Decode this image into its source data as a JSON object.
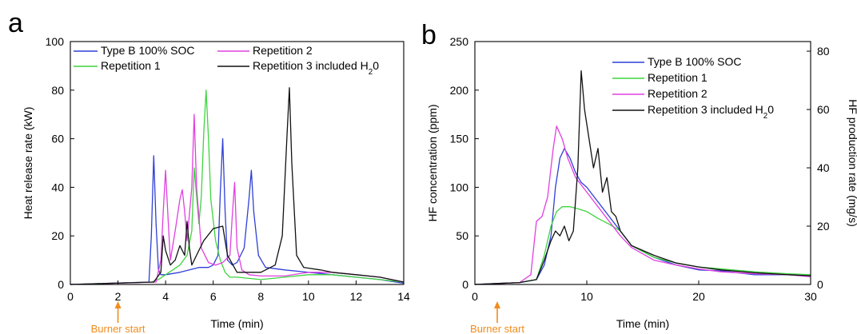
{
  "colors": {
    "type_b": "#2f3fd6",
    "repetition_1": "#3fd43f",
    "repetition_2": "#e040e0",
    "repetition_3": "#111111",
    "burner": "#f08c1e",
    "axis": "#000000"
  },
  "chart_data": [
    {
      "panel_label": "a",
      "type": "line",
      "xlabel": "Time (min)",
      "ylabel": "Heat release rate (kW)",
      "xlim": [
        0,
        14
      ],
      "ylim": [
        0,
        100
      ],
      "xticks": [
        0,
        2,
        4,
        6,
        8,
        10,
        12,
        14
      ],
      "yticks": [
        0,
        20,
        40,
        60,
        80,
        100
      ],
      "legend_position": "top",
      "annotation": {
        "text": "Burner start",
        "x": 2
      },
      "series": [
        {
          "name": "Type B 100% SOC",
          "color_key": "type_b",
          "x": [
            0,
            3.3,
            3.4,
            3.5,
            3.6,
            3.7,
            3.8,
            4.0,
            4.3,
            4.6,
            5.0,
            5.4,
            5.8,
            6.0,
            6.2,
            6.3,
            6.4,
            6.5,
            6.6,
            6.8,
            7.0,
            7.3,
            7.5,
            7.6,
            7.7,
            7.9,
            8.2,
            9.0,
            10.0,
            11.0,
            12.0,
            13.0,
            14.0
          ],
          "y": [
            0,
            1,
            20,
            53,
            25,
            6,
            4,
            4,
            4.5,
            5,
            6,
            7,
            7,
            8,
            12,
            38,
            60,
            30,
            10,
            8,
            9,
            15,
            35,
            47,
            30,
            12,
            7,
            6,
            5,
            4,
            3,
            2,
            0.5
          ]
        },
        {
          "name": "Repetition 1",
          "color_key": "repetition_1",
          "x": [
            0,
            3.4,
            3.7,
            4.0,
            4.3,
            4.6,
            4.9,
            5.1,
            5.2,
            5.4,
            5.5,
            5.6,
            5.7,
            5.8,
            5.9,
            6.1,
            6.3,
            6.5,
            6.7,
            7.0,
            7.5,
            8.0,
            9.0,
            10.0,
            11.0,
            12.0,
            13.0,
            14.0
          ],
          "y": [
            0,
            1,
            2,
            4,
            6,
            8,
            12,
            22,
            48,
            25,
            36,
            62,
            80,
            60,
            35,
            18,
            10,
            5,
            3,
            3,
            2.5,
            2,
            3,
            4,
            4,
            3,
            2,
            1
          ]
        },
        {
          "name": "Repetition 2",
          "color_key": "repetition_2",
          "x": [
            0,
            3.6,
            3.8,
            3.9,
            4.0,
            4.1,
            4.2,
            4.4,
            4.6,
            4.7,
            4.8,
            4.9,
            5.1,
            5.2,
            5.3,
            5.5,
            5.8,
            6.1,
            6.4,
            6.7,
            6.8,
            6.9,
            7.0,
            7.2,
            7.5,
            8.0,
            9.0,
            10.0,
            11.0,
            12.0,
            13.0,
            14.0
          ],
          "y": [
            0,
            1,
            10,
            30,
            47,
            28,
            10,
            22,
            35,
            39,
            30,
            18,
            40,
            70,
            40,
            15,
            9,
            8,
            9,
            12,
            28,
            42,
            15,
            6,
            4,
            3.5,
            3.5,
            5,
            5,
            4,
            3,
            1
          ]
        },
        {
          "name": "Repetition 3 included H₂0",
          "color_key": "repetition_3",
          "x": [
            0,
            3.5,
            3.8,
            3.9,
            4.0,
            4.2,
            4.4,
            4.6,
            4.8,
            4.9,
            5.0,
            5.1,
            5.2,
            5.4,
            5.6,
            6.0,
            6.4,
            6.6,
            7.0,
            8.0,
            8.6,
            8.9,
            9.1,
            9.2,
            9.3,
            9.5,
            9.8,
            10.5,
            11.0,
            12.0,
            13.0,
            14.0
          ],
          "y": [
            0,
            1,
            5,
            20,
            14,
            8,
            10,
            16,
            12,
            26,
            15,
            8,
            10,
            14,
            18,
            23,
            24,
            12,
            5,
            5,
            8,
            20,
            62,
            81,
            50,
            12,
            7,
            6,
            5,
            4,
            3,
            1
          ]
        }
      ]
    },
    {
      "panel_label": "b",
      "type": "line",
      "xlabel": "Time (min)",
      "ylabel": "HF concentration (ppm)",
      "y2label": "HF production rate (mg/s)",
      "xlim": [
        0,
        30
      ],
      "ylim": [
        0,
        250
      ],
      "y2lim": [
        0,
        83.3
      ],
      "xticks": [
        0,
        10,
        20,
        30
      ],
      "yticks": [
        0,
        50,
        100,
        150,
        200,
        250
      ],
      "y2ticks": [
        0,
        20,
        40,
        60,
        80
      ],
      "legend_position": "top-right",
      "annotation": {
        "text": "Burner start",
        "x": 2
      },
      "series": [
        {
          "name": "Type B 100% SOC",
          "color_key": "type_b",
          "x": [
            0,
            2,
            4,
            5.5,
            6.2,
            6.8,
            7.2,
            7.6,
            8.0,
            8.5,
            9.0,
            9.5,
            10.0,
            11.0,
            12.0,
            13.0,
            14.0,
            16.0,
            18.0,
            20.0,
            22.0,
            25.0,
            28.0,
            30.0
          ],
          "y": [
            0,
            1,
            2,
            5,
            20,
            50,
            100,
            130,
            140,
            130,
            115,
            105,
            100,
            85,
            70,
            55,
            40,
            28,
            20,
            15,
            14,
            10,
            10,
            9
          ]
        },
        {
          "name": "Repetition 1",
          "color_key": "repetition_1",
          "x": [
            0,
            2,
            4,
            5.5,
            6.2,
            6.8,
            7.3,
            7.8,
            8.5,
            9.2,
            10.0,
            11.0,
            12.0,
            13.0,
            14.0,
            16.0,
            18.0,
            20.0,
            22.0,
            25.0,
            28.0,
            30.0
          ],
          "y": [
            0,
            1,
            2,
            5,
            30,
            60,
            75,
            80,
            80,
            78,
            75,
            68,
            62,
            55,
            40,
            28,
            22,
            18,
            16,
            13,
            11,
            10
          ]
        },
        {
          "name": "Repetition 2",
          "color_key": "repetition_2",
          "x": [
            0,
            2,
            4,
            5.0,
            5.5,
            6.0,
            6.5,
            7.0,
            7.3,
            7.8,
            8.3,
            9.0,
            10.0,
            11.0,
            12.0,
            13.0,
            14.0,
            16.0,
            18.0,
            20.0,
            22.0,
            25.0,
            28.0,
            30.0
          ],
          "y": [
            0,
            1,
            2,
            10,
            65,
            70,
            90,
            140,
            163,
            150,
            130,
            110,
            95,
            80,
            65,
            50,
            38,
            25,
            20,
            16,
            13,
            11,
            10,
            8
          ]
        },
        {
          "name": "Repetition 3 included H₂0",
          "color_key": "repetition_3",
          "x": [
            0,
            2,
            4,
            5.5,
            6.2,
            6.8,
            7.2,
            7.6,
            8.0,
            8.4,
            8.8,
            9.2,
            9.5,
            9.8,
            10.2,
            10.6,
            11.0,
            11.4,
            11.8,
            12.2,
            12.6,
            13.0,
            14.0,
            16.0,
            18.0,
            20.0,
            22.0,
            25.0,
            28.0,
            30.0
          ],
          "y": [
            0,
            1,
            2,
            5,
            25,
            45,
            55,
            50,
            60,
            45,
            55,
            120,
            220,
            180,
            150,
            120,
            140,
            95,
            110,
            75,
            70,
            55,
            40,
            30,
            22,
            18,
            15,
            12,
            10,
            9
          ]
        }
      ]
    }
  ]
}
